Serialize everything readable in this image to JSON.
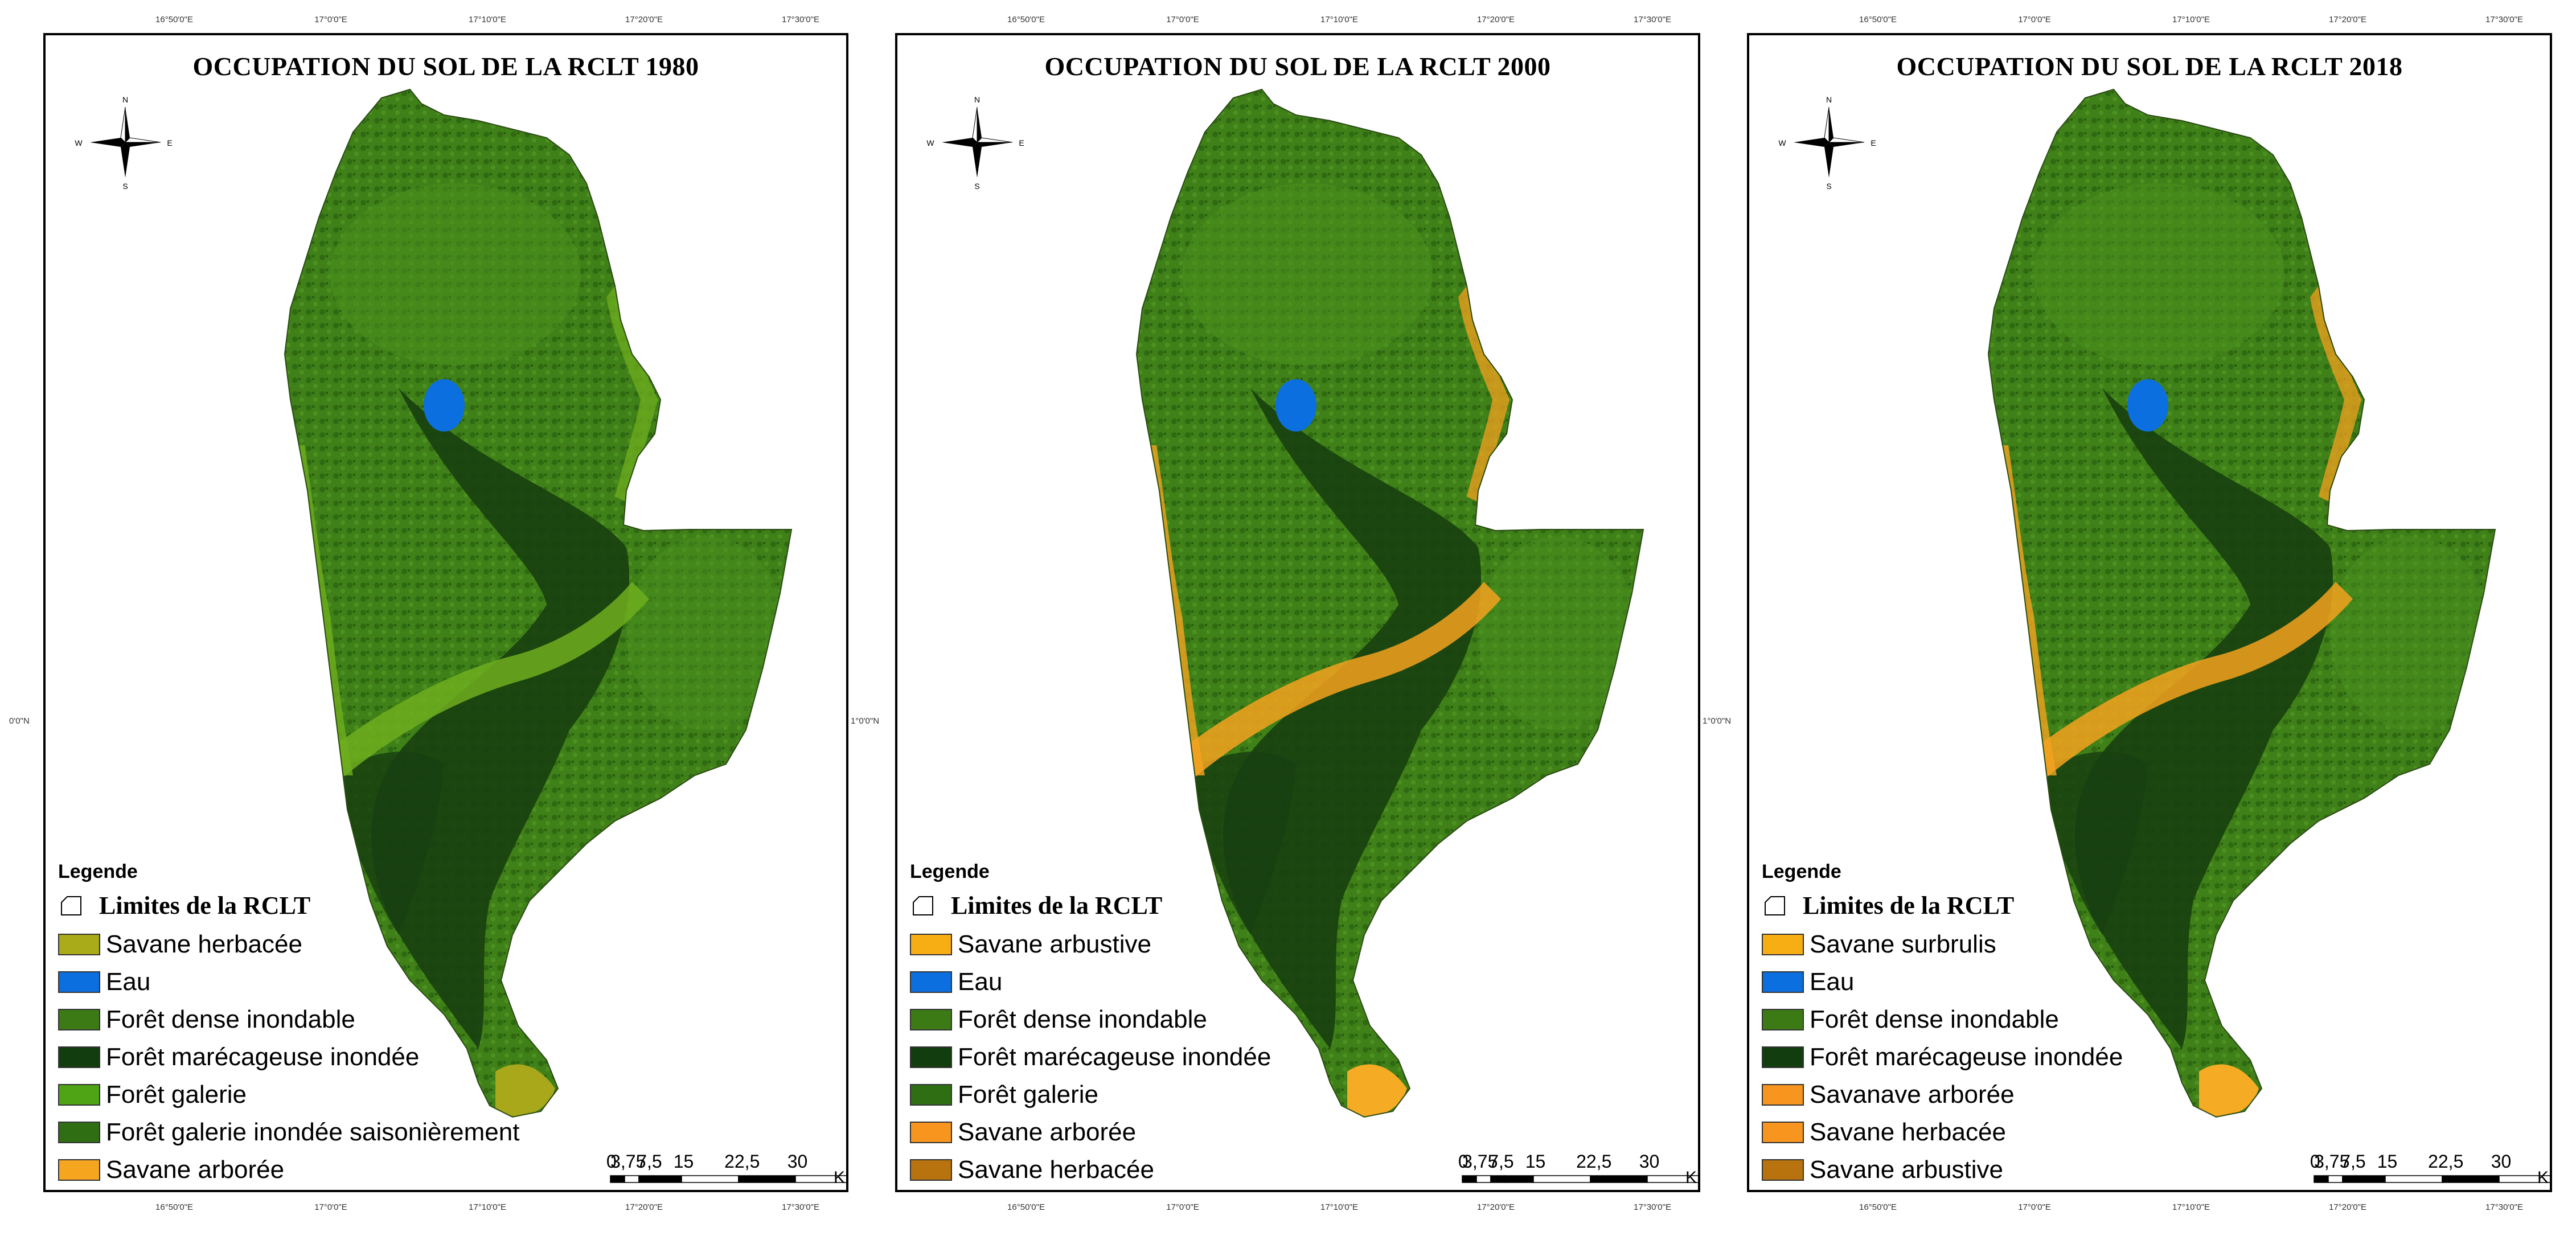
{
  "maps": [
    {
      "title": "OCCUPATION DU SOL DE LA RCLT 1980",
      "legend_heading": "Legende",
      "limit_label": "Limites de la RCLT",
      "fringe_color": "#6fae1e",
      "south_color": "#a8a81a",
      "legend": [
        {
          "label": "Savane herbacée",
          "color": "#a9ab18"
        },
        {
          "label": "Eau",
          "color": "#0b6fe0"
        },
        {
          "label": "Forêt dense inondable",
          "color": "#3c7a16"
        },
        {
          "label": "Forêt marécageuse inondée",
          "color": "#123d0e"
        },
        {
          "label": "Forêt galerie",
          "color": "#4ea414"
        },
        {
          "label": "Forêt galerie inondée saisonièrement",
          "color": "#2f6e12"
        },
        {
          "label": "Savane arborée",
          "color": "#f5a51e"
        }
      ]
    },
    {
      "title": "OCCUPATION DU SOL DE LA RCLT 2000",
      "legend_heading": "Legende",
      "limit_label": "Limites de la RCLT",
      "fringe_color": "#f4a21f",
      "south_color": "#f6ab25",
      "legend": [
        {
          "label": "Savane arbustive",
          "color": "#f7ad14"
        },
        {
          "label": "Eau",
          "color": "#0b6fe0"
        },
        {
          "label": "Forêt dense inondable",
          "color": "#3c7a16"
        },
        {
          "label": "Forêt marécageuse inondée",
          "color": "#123d0e"
        },
        {
          "label": "Forêt galerie",
          "color": "#2f6e12"
        },
        {
          "label": "Savane arborée",
          "color": "#f7951e"
        },
        {
          "label": "Savane herbacée",
          "color": "#b9730e"
        }
      ]
    },
    {
      "title": "OCCUPATION DU SOL DE LA RCLT 2018",
      "legend_heading": "Legende",
      "limit_label": "Limites de la RCLT",
      "fringe_color": "#f4a21f",
      "south_color": "#f6ab25",
      "legend": [
        {
          "label": "Savane surbrulis",
          "color": "#f7ad14"
        },
        {
          "label": "Eau",
          "color": "#0b6fe0"
        },
        {
          "label": "Forêt dense inondable",
          "color": "#3c7a16"
        },
        {
          "label": "Forêt marécageuse inondée",
          "color": "#123d0e"
        },
        {
          "label": "Savanave arborée",
          "color": "#f7951e"
        },
        {
          "label": "Savane herbacée",
          "color": "#f7951e"
        },
        {
          "label": "Savane arbustive",
          "color": "#b9730e"
        }
      ]
    }
  ],
  "scale": {
    "labels": [
      "0",
      "3,75",
      "7,5",
      "15",
      "22,5",
      "30"
    ],
    "unit": "Km"
  },
  "graticule": {
    "top": [
      "16°50'0\"E",
      "17°0'0\"E",
      "17°10'0\"E",
      "17°20'0\"E",
      "17°30'0\"E"
    ],
    "side": "1°0'0\"N",
    "side_short": "0'0\"N"
  },
  "compass_letters": {
    "n": "N",
    "s": "S",
    "e": "E",
    "w": "W"
  }
}
